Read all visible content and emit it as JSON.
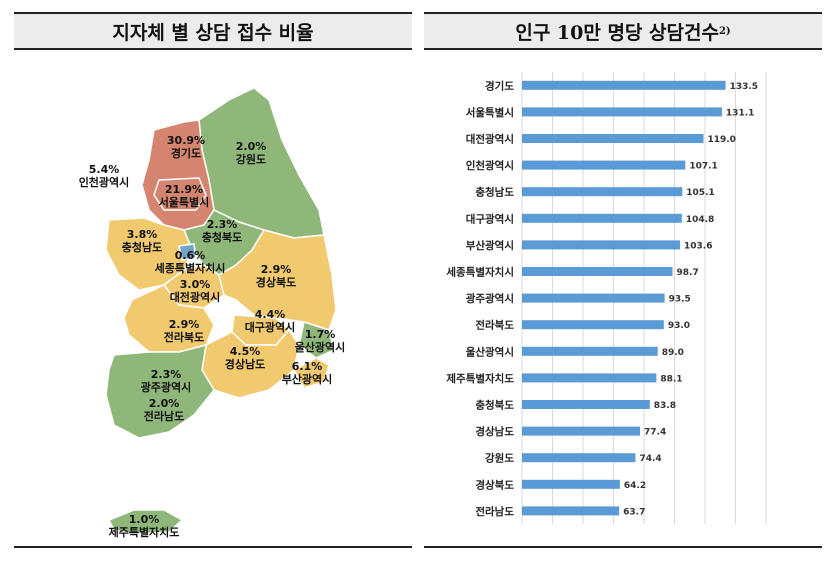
{
  "left_panel": {
    "title": "지자체 별 상담 접수 비율"
  },
  "right_panel": {
    "title": "인구 10만 명당 상담건수",
    "title_sup": "2)"
  },
  "map_regions": [
    {
      "name": "경기도",
      "pct": "30.9%",
      "color": "#d4846f"
    },
    {
      "name": "강원도",
      "pct": "2.0%",
      "color": "#8fb77a"
    },
    {
      "name": "인천광역시",
      "pct": "5.4%",
      "color": "#ffffff"
    },
    {
      "name": "서울특별시",
      "pct": "21.9%",
      "color": "#d4846f"
    },
    {
      "name": "충청북도",
      "pct": "2.3%",
      "color": "#8fb77a"
    },
    {
      "name": "충청남도",
      "pct": "3.8%",
      "color": "#f1c96e"
    },
    {
      "name": "세종특별자치시",
      "pct": "0.6%",
      "color": "#6fa6c9"
    },
    {
      "name": "경상북도",
      "pct": "2.9%",
      "color": "#f1c96e"
    },
    {
      "name": "대전광역시",
      "pct": "3.0%",
      "color": "#f1c96e"
    },
    {
      "name": "대구광역시",
      "pct": "4.4%",
      "color": "#f1c96e"
    },
    {
      "name": "울산광역시",
      "pct": "1.7%",
      "color": "#8fb77a"
    },
    {
      "name": "전라북도",
      "pct": "2.9%",
      "color": "#f1c96e"
    },
    {
      "name": "경상남도",
      "pct": "4.5%",
      "color": "#f1c96e"
    },
    {
      "name": "부산광역시",
      "pct": "6.1%",
      "color": "#f1c96e"
    },
    {
      "name": "광주광역시",
      "pct": "2.3%",
      "color": "#8fb77a"
    },
    {
      "name": "전라남도",
      "pct": "2.0%",
      "color": "#8fb77a"
    },
    {
      "name": "제주특별자치도",
      "pct": "1.0%",
      "color": "#8fb77a"
    }
  ],
  "chart_data": {
    "type": "bar",
    "orientation": "horizontal",
    "categories": [
      "경기도",
      "서울특별시",
      "대전광역시",
      "인천광역시",
      "충청남도",
      "대구광역시",
      "부산광역시",
      "세종특별자치시",
      "광주광역시",
      "전라북도",
      "울산광역시",
      "제주특별자치도",
      "충청북도",
      "경상남도",
      "강원도",
      "경상북도",
      "전라남도"
    ],
    "values": [
      133.5,
      131.1,
      119.0,
      107.1,
      105.1,
      104.8,
      103.6,
      98.7,
      93.5,
      93.0,
      89.0,
      88.1,
      83.8,
      77.4,
      74.4,
      64.2,
      63.7
    ],
    "value_labels": [
      "133.5",
      "131.1",
      "119.0",
      "107.1",
      "105.1",
      "104.8",
      "103.6",
      "98.7",
      "93.5",
      "93.0",
      "89.0",
      "88.1",
      "83.8",
      "77.4",
      "74.4",
      "64.2",
      "63.7"
    ],
    "xlim": [
      0,
      160
    ],
    "grid": true,
    "bar_color": "#5b9bd5"
  }
}
